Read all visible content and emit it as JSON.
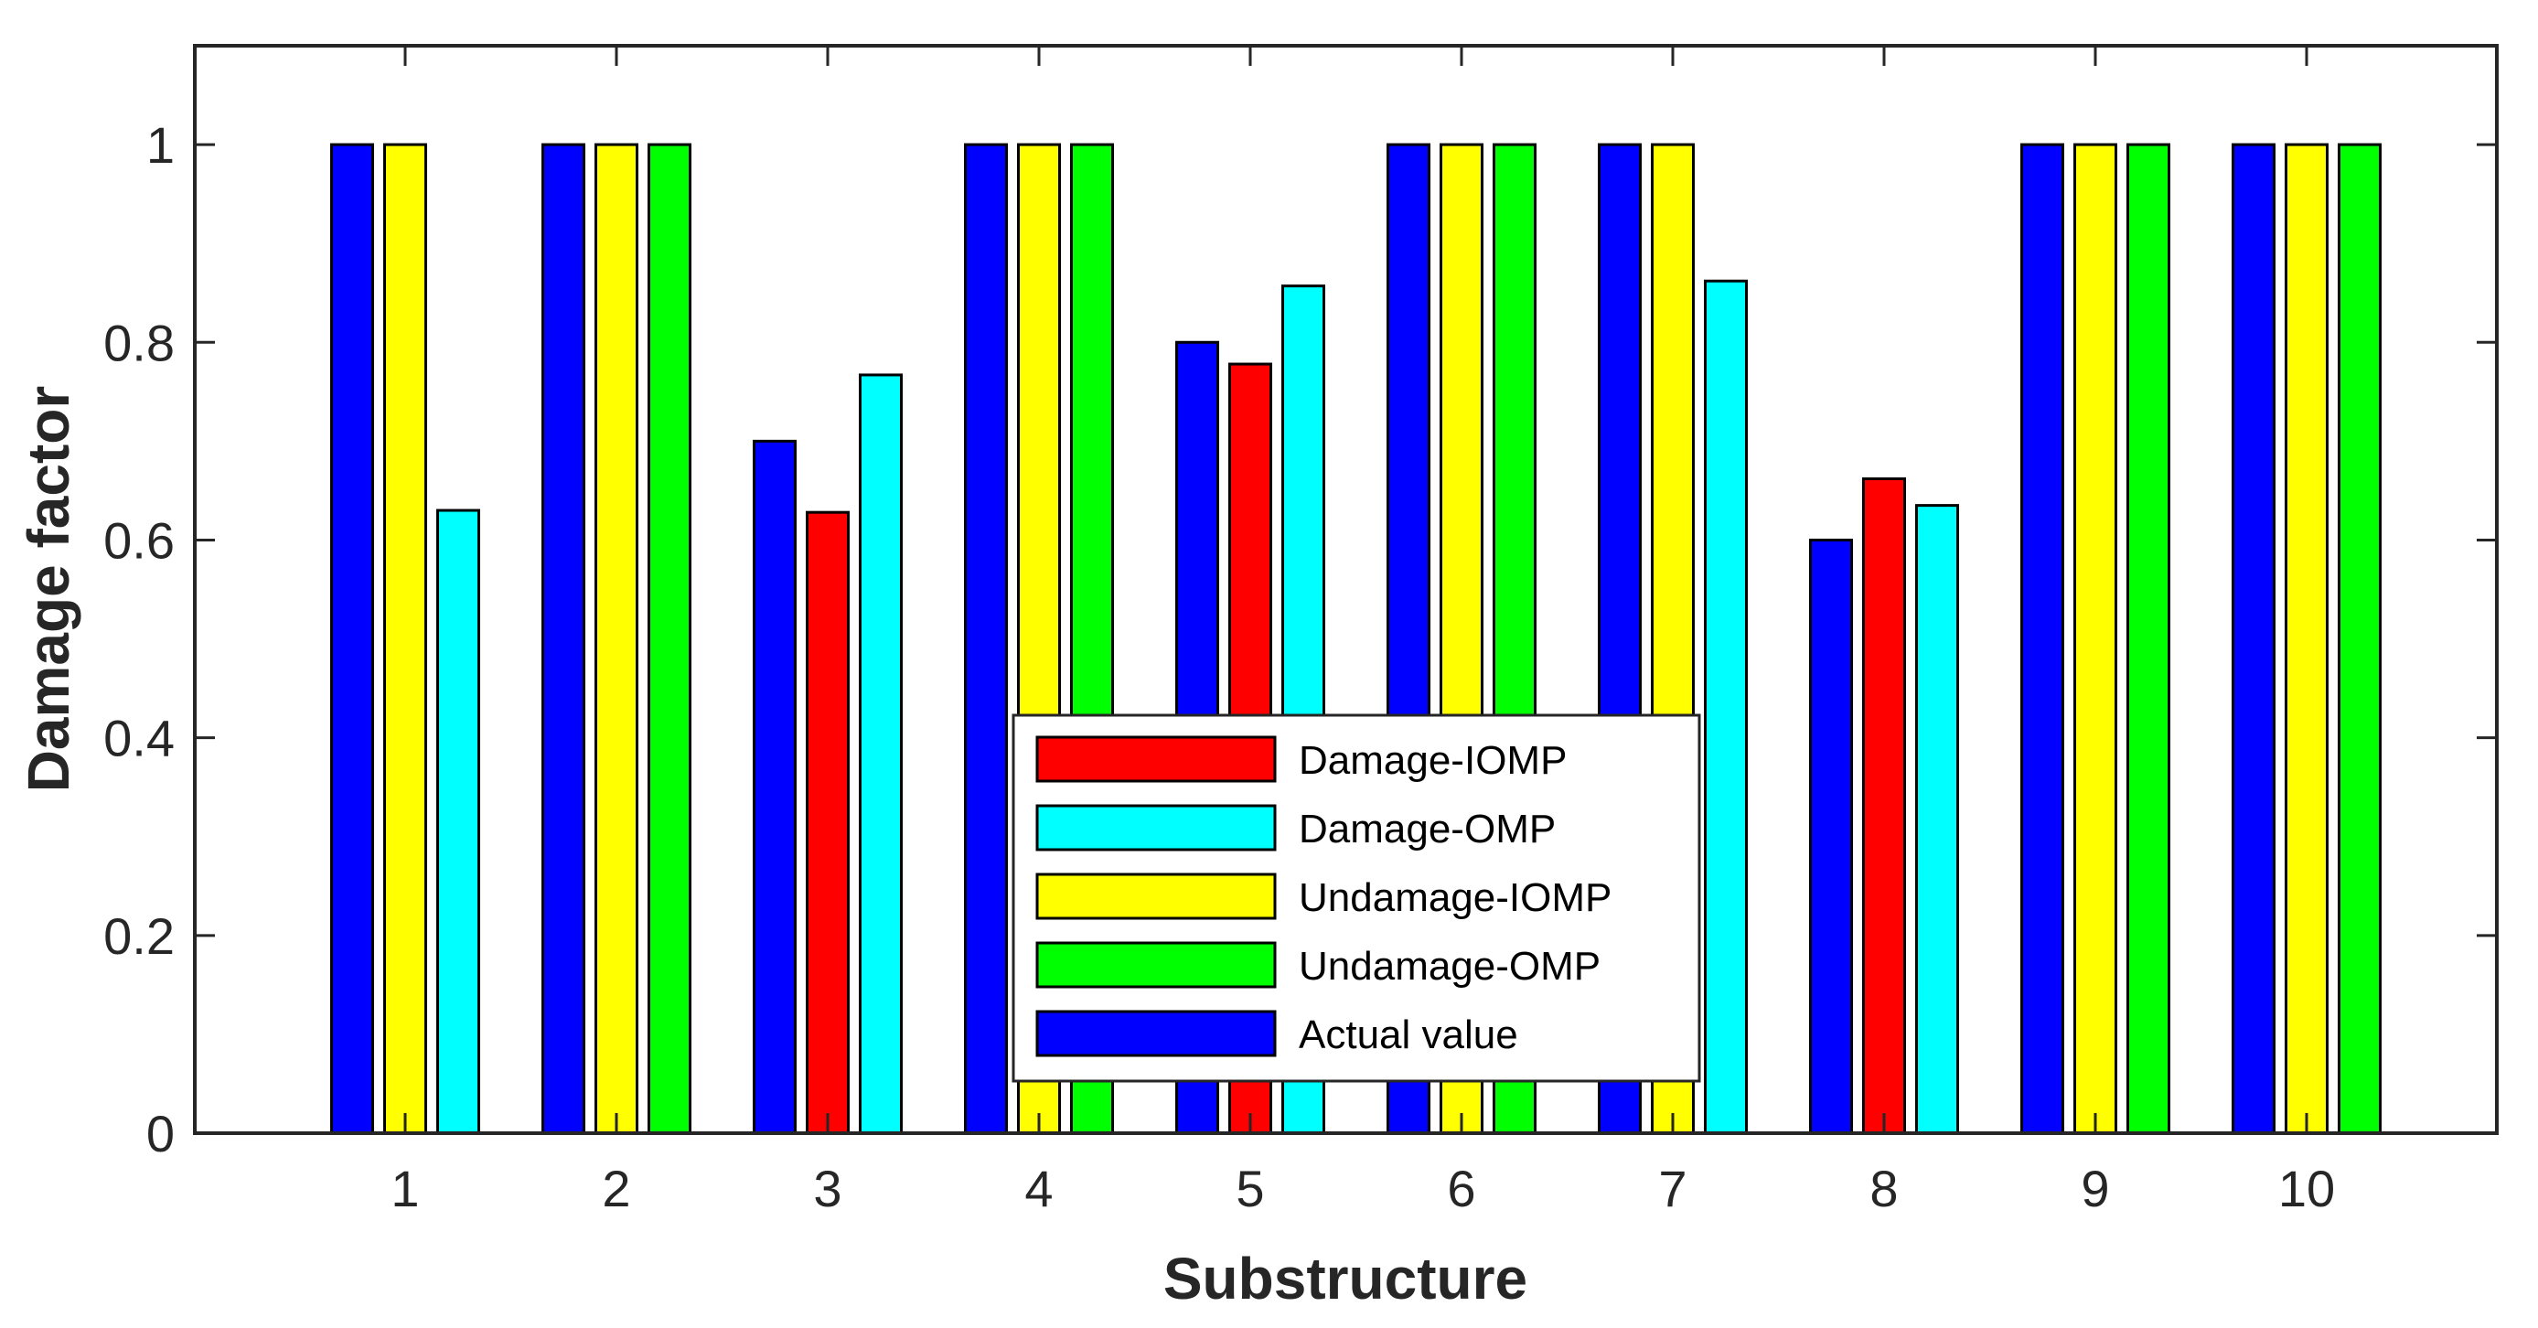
{
  "chart_data": {
    "type": "bar",
    "title": "",
    "xlabel": "Substructure",
    "ylabel": "Damage factor",
    "ylim": [
      0,
      1.1
    ],
    "yticks": [
      0,
      0.2,
      0.4,
      0.6,
      0.8,
      1
    ],
    "ytick_labels": [
      "0",
      "0.2",
      "0.4",
      "0.6",
      "0.8",
      "1"
    ],
    "categories": [
      "1",
      "2",
      "3",
      "4",
      "5",
      "6",
      "7",
      "8",
      "9",
      "10"
    ],
    "grid": false,
    "legend_position": "bottom-center",
    "bars": [
      [
        {
          "series": "Actual value",
          "value": 1
        },
        {
          "series": "Undamage-IOMP",
          "value": 1
        },
        {
          "series": "Damage-OMP",
          "value": 0.63
        }
      ],
      [
        {
          "series": "Actual value",
          "value": 1
        },
        {
          "series": "Undamage-IOMP",
          "value": 1
        },
        {
          "series": "Undamage-OMP",
          "value": 1
        }
      ],
      [
        {
          "series": "Actual value",
          "value": 0.7
        },
        {
          "series": "Damage-IOMP",
          "value": 0.628
        },
        {
          "series": "Damage-OMP",
          "value": 0.767
        }
      ],
      [
        {
          "series": "Actual value",
          "value": 1
        },
        {
          "series": "Undamage-IOMP",
          "value": 1
        },
        {
          "series": "Undamage-OMP",
          "value": 1
        }
      ],
      [
        {
          "series": "Actual value",
          "value": 0.8
        },
        {
          "series": "Damage-IOMP",
          "value": 0.778
        },
        {
          "series": "Damage-OMP",
          "value": 0.857
        }
      ],
      [
        {
          "series": "Actual value",
          "value": 1
        },
        {
          "series": "Undamage-IOMP",
          "value": 1
        },
        {
          "series": "Undamage-OMP",
          "value": 1
        }
      ],
      [
        {
          "series": "Actual value",
          "value": 1
        },
        {
          "series": "Undamage-IOMP",
          "value": 1
        },
        {
          "series": "Damage-OMP",
          "value": 0.862
        }
      ],
      [
        {
          "series": "Actual value",
          "value": 0.6
        },
        {
          "series": "Damage-IOMP",
          "value": 0.662
        },
        {
          "series": "Damage-OMP",
          "value": 0.635
        }
      ],
      [
        {
          "series": "Actual value",
          "value": 1
        },
        {
          "series": "Undamage-IOMP",
          "value": 1
        },
        {
          "series": "Undamage-OMP",
          "value": 1
        }
      ],
      [
        {
          "series": "Actual value",
          "value": 1
        },
        {
          "series": "Undamage-IOMP",
          "value": 1
        },
        {
          "series": "Undamage-OMP",
          "value": 1
        }
      ]
    ],
    "series": [
      {
        "name": "Damage-IOMP",
        "color": "#ff0000"
      },
      {
        "name": "Damage-OMP",
        "color": "#00ffff"
      },
      {
        "name": "Undamage-IOMP",
        "color": "#ffff00"
      },
      {
        "name": "Undamage-OMP",
        "color": "#00ff00"
      },
      {
        "name": "Actual value",
        "color": "#0000ff"
      }
    ]
  }
}
